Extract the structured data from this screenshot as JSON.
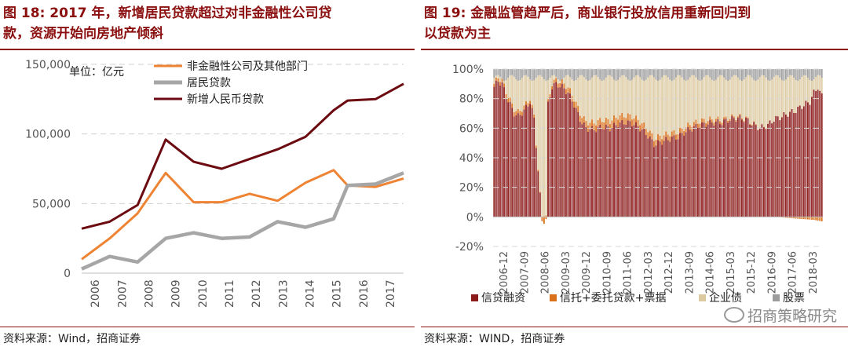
{
  "left": {
    "title_line1": "图 18:  2017 年，新增居民贷款超过对非金融性公司贷",
    "title_line2": "款，资源开始向房地产倾斜",
    "source": "资料来源：Wind，招商证券"
  },
  "right": {
    "title_line1": "图 19:  金融监管趋严后，商业银行投放信用重新回归到",
    "title_line2": "以贷款为主",
    "source": "资料来源：WIND，招商证券"
  },
  "watermark": "招商策略研究",
  "colors": {
    "title": "#8b0f0f",
    "nonfin": "#ee8433",
    "resident": "#a6a6a6",
    "total": "#6b0a10",
    "credit": "#8b1a1a",
    "trust": "#d9711b",
    "bond": "#dcc9a0",
    "equity": "#9c9c9c"
  },
  "chart_data": [
    {
      "type": "line",
      "unit_label": "单位：亿元",
      "categories": [
        "2006",
        "2007",
        "2008",
        "2009",
        "2010",
        "2011",
        "2012",
        "2013",
        "2014",
        "2015",
        "2016",
        "2017"
      ],
      "x": [
        2006.0,
        2007.0,
        2008.0,
        2009.0,
        2010.0,
        2011.0,
        2012.0,
        2013.0,
        2014.0,
        2015.0,
        2015.5,
        2016.5,
        2017.5
      ],
      "ylim": [
        0,
        150000
      ],
      "yticks": [
        0,
        50000,
        100000,
        150000
      ],
      "ytick_labels": [
        "0",
        "50,000",
        "100,000",
        "150,000"
      ],
      "series": [
        {
          "name": "非金融性公司及其他部门",
          "values": [
            10000,
            25000,
            43000,
            72000,
            51000,
            51000,
            57000,
            52000,
            65000,
            74000,
            63000,
            62000,
            68000
          ]
        },
        {
          "name": "居民贷款",
          "values": [
            3000,
            12000,
            8000,
            25000,
            29000,
            25000,
            26000,
            37000,
            33000,
            39000,
            63000,
            64000,
            72000
          ]
        },
        {
          "name": "新增人民币贷款",
          "values": [
            32000,
            37000,
            49000,
            96000,
            80000,
            75000,
            82000,
            89000,
            98000,
            117000,
            124000,
            125000,
            136000
          ]
        }
      ]
    },
    {
      "type": "bar",
      "stacked": true,
      "unit": "percent",
      "ylim": [
        -20,
        100
      ],
      "yticks": [
        -20,
        0,
        20,
        40,
        60,
        80,
        100
      ],
      "ytick_labels": [
        "-20%",
        "0%",
        "20%",
        "40%",
        "60%",
        "80%",
        "100%"
      ],
      "categories": [
        "2006-12",
        "2007-09",
        "2008-06",
        "2009-03",
        "2009-12",
        "2010-09",
        "2011-06",
        "2012-03",
        "2012-12",
        "2013-09",
        "2014-06",
        "2015-03",
        "2015-12",
        "2016-09",
        "2017-06",
        "2018-03"
      ],
      "credit_share_anchors": [
        [
          0,
          88
        ],
        [
          2,
          92
        ],
        [
          4,
          90
        ],
        [
          6,
          82
        ],
        [
          8,
          76
        ],
        [
          10,
          70
        ],
        [
          12,
          68
        ],
        [
          15,
          72
        ],
        [
          18,
          78
        ],
        [
          20,
          66
        ],
        [
          24,
          -3
        ],
        [
          26,
          -2
        ],
        [
          27,
          76
        ],
        [
          29,
          88
        ],
        [
          31,
          90
        ],
        [
          34,
          88
        ],
        [
          37,
          84
        ],
        [
          40,
          76
        ],
        [
          43,
          66
        ],
        [
          46,
          60
        ],
        [
          50,
          59
        ],
        [
          54,
          61
        ],
        [
          58,
          60
        ],
        [
          62,
          63
        ],
        [
          66,
          64
        ],
        [
          70,
          63
        ],
        [
          73,
          60
        ],
        [
          77,
          55
        ],
        [
          80,
          49
        ],
        [
          84,
          51
        ],
        [
          88,
          53
        ],
        [
          92,
          54
        ],
        [
          95,
          57
        ],
        [
          99,
          60
        ],
        [
          103,
          62
        ],
        [
          106,
          63
        ],
        [
          110,
          64
        ],
        [
          114,
          64
        ],
        [
          118,
          66
        ],
        [
          122,
          67
        ],
        [
          126,
          66
        ],
        [
          129,
          63
        ],
        [
          133,
          60
        ],
        [
          137,
          62
        ],
        [
          140,
          66
        ],
        [
          144,
          68
        ],
        [
          147,
          70
        ],
        [
          151,
          72
        ],
        [
          154,
          75
        ],
        [
          158,
          78
        ],
        [
          160,
          84
        ],
        [
          162,
          88
        ],
        [
          163,
          84
        ],
        [
          164,
          82
        ]
      ],
      "trust_segment_anchors": [
        [
          0,
          2
        ],
        [
          10,
          3
        ],
        [
          20,
          2
        ],
        [
          24,
          0
        ],
        [
          28,
          2
        ],
        [
          40,
          4
        ],
        [
          60,
          5
        ],
        [
          80,
          4
        ],
        [
          100,
          3
        ],
        [
          120,
          1
        ],
        [
          140,
          0
        ],
        [
          160,
          -2
        ],
        [
          164,
          -3
        ]
      ],
      "bond_to": 96,
      "equity_to": 100,
      "series": [
        {
          "name": "信贷融资"
        },
        {
          "name": "信托+委托贷款+票据"
        },
        {
          "name": "企业债"
        },
        {
          "name": "股票"
        }
      ]
    }
  ]
}
